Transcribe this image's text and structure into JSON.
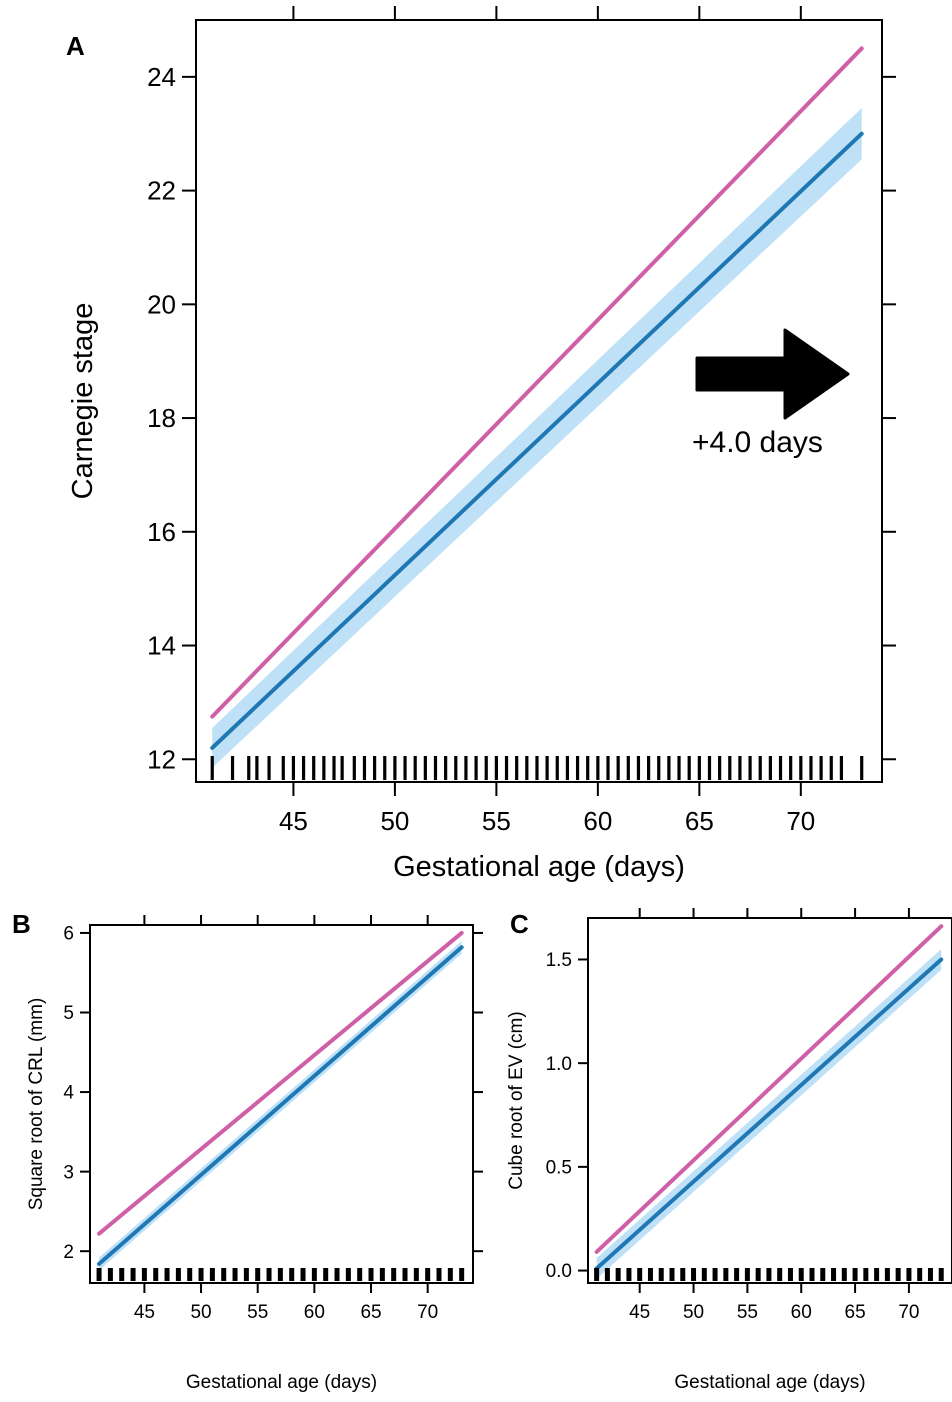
{
  "colors": {
    "reference_line": "#cf5fa7",
    "fit_line": "#1f77b4",
    "ci_band": "#bfe1f7",
    "axis": "#000000"
  },
  "chart_data": [
    {
      "id": "A",
      "panel_label": "A",
      "type": "line",
      "xlabel": "Gestational age (days)",
      "ylabel": "Carnegie stage",
      "xlim": [
        40.2,
        74.0
      ],
      "ylim": [
        11.6,
        25.0
      ],
      "xticks": [
        45,
        50,
        55,
        60,
        65,
        70
      ],
      "yticks": [
        12,
        14,
        16,
        18,
        20,
        22,
        24
      ],
      "ytick_labels": [
        "12",
        "14",
        "16",
        "18",
        "20",
        "22",
        "24"
      ],
      "grid": false,
      "series": [
        {
          "role": "reference",
          "color_key": "reference_line",
          "x": [
            41,
            73
          ],
          "y": [
            12.75,
            24.5
          ]
        },
        {
          "role": "fit",
          "color_key": "fit_line",
          "x": [
            41,
            73
          ],
          "y": [
            12.2,
            23.0
          ],
          "ci_lower": [
            11.85,
            22.55
          ],
          "ci_upper": [
            12.55,
            23.45
          ]
        }
      ],
      "rug_x": [
        41,
        42,
        42.8,
        43.2,
        43.8,
        44.5,
        45,
        45.5,
        46,
        46.5,
        47,
        47.4,
        48,
        48.5,
        49,
        49.5,
        50,
        50.5,
        51,
        51.5,
        52,
        52.5,
        53,
        53.5,
        54,
        54.5,
        55,
        55.5,
        56,
        56.5,
        57,
        57.5,
        58,
        58.5,
        59,
        59.5,
        60,
        60.5,
        61,
        61.5,
        62,
        62.5,
        63,
        63.5,
        64,
        64.5,
        65,
        65.5,
        66,
        66.5,
        67,
        67.5,
        68,
        68.5,
        69,
        69.5,
        70,
        70.5,
        71,
        71.5,
        72,
        73
      ],
      "annotation": {
        "text": "+4.0 days",
        "arrow": "right-arrow-icon"
      }
    },
    {
      "id": "B",
      "panel_label": "B",
      "type": "line",
      "xlabel": "Gestational age (days)",
      "ylabel": "Square root of CRL (mm)",
      "xlim": [
        40.2,
        74.0
      ],
      "ylim": [
        1.6,
        6.1
      ],
      "xticks": [
        45,
        50,
        55,
        60,
        65,
        70
      ],
      "yticks": [
        2,
        3,
        4,
        5,
        6
      ],
      "ytick_labels": [
        "2",
        "3",
        "4",
        "5",
        "6"
      ],
      "grid": false,
      "series": [
        {
          "role": "reference",
          "color_key": "reference_line",
          "x": [
            41,
            73
          ],
          "y": [
            2.22,
            6.0
          ]
        },
        {
          "role": "fit",
          "color_key": "fit_line",
          "x": [
            41,
            73
          ],
          "y": [
            1.84,
            5.82
          ],
          "ci_lower": [
            1.76,
            5.74
          ],
          "ci_upper": [
            1.92,
            5.9
          ]
        }
      ],
      "rug_x": [
        41,
        42,
        43,
        44,
        45,
        46,
        47,
        48,
        49,
        50,
        51,
        52,
        53,
        54,
        55,
        56,
        57,
        58,
        59,
        60,
        61,
        62,
        63,
        64,
        65,
        66,
        67,
        68,
        69,
        70,
        71,
        72,
        73
      ]
    },
    {
      "id": "C",
      "panel_label": "C",
      "type": "line",
      "xlabel": "Gestational age (days)",
      "ylabel": "Cube root of EV (cm)",
      "xlim": [
        40.2,
        74.0
      ],
      "ylim": [
        -0.06,
        1.7
      ],
      "xticks": [
        45,
        50,
        55,
        60,
        65,
        70
      ],
      "yticks": [
        0.0,
        0.5,
        1.0,
        1.5
      ],
      "ytick_labels": [
        "0.0",
        "0.5",
        "1.0",
        "1.5"
      ],
      "grid": false,
      "series": [
        {
          "role": "reference",
          "color_key": "reference_line",
          "x": [
            41,
            73
          ],
          "y": [
            0.09,
            1.66
          ]
        },
        {
          "role": "fit",
          "color_key": "fit_line",
          "x": [
            41,
            73
          ],
          "y": [
            0.01,
            1.5
          ],
          "ci_lower": [
            -0.04,
            1.45
          ],
          "ci_upper": [
            0.06,
            1.55
          ]
        }
      ],
      "rug_x": [
        41,
        42,
        43,
        44,
        45,
        46,
        47,
        48,
        49,
        50,
        51,
        52,
        53,
        54,
        55,
        56,
        57,
        58,
        59,
        60,
        61,
        62,
        63,
        64,
        65,
        66,
        67,
        68,
        69,
        70,
        71,
        72,
        73
      ]
    }
  ]
}
